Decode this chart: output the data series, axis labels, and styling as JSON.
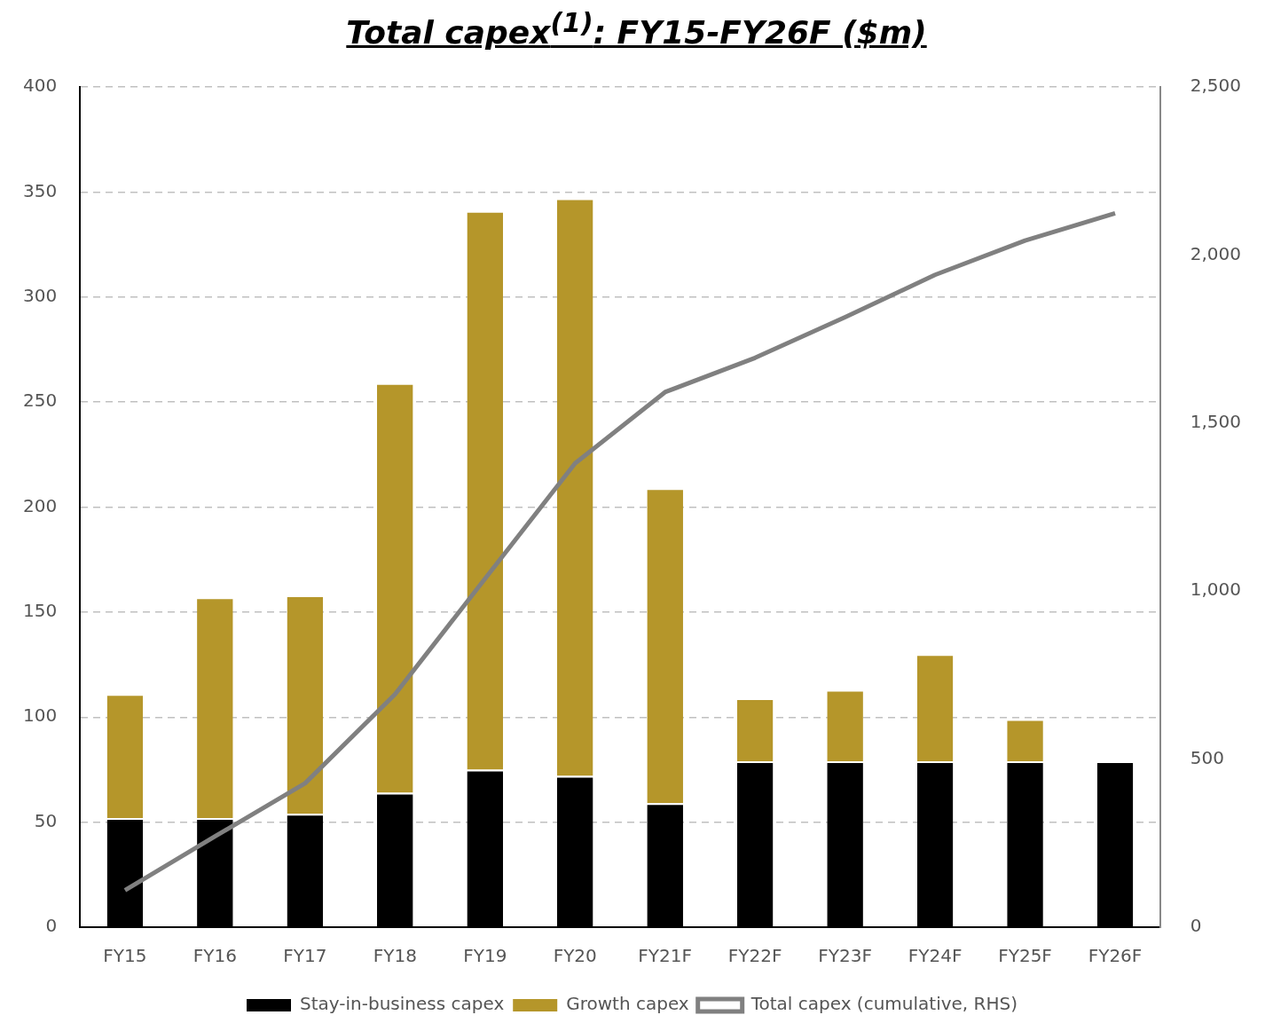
{
  "chart_data": {
    "type": "bar",
    "title": "Total capex$^{(1)}$: FY15-FY26F ($m)",
    "categories": [
      "FY15",
      "FY16",
      "FY17",
      "FY18",
      "FY19",
      "FY20",
      "FY21F",
      "FY22F",
      "FY23F",
      "FY24F",
      "FY25F",
      "FY26F"
    ],
    "stacked": true,
    "series": [
      {
        "name": "Stay-in-business capex",
        "color": "#000000",
        "values": [
          52,
          52,
          54,
          64,
          75,
          72,
          59,
          79,
          79,
          79,
          79,
          79
        ]
      },
      {
        "name": "Growth capex",
        "color": "#b5962a",
        "values": [
          59,
          105,
          104,
          195,
          266,
          275,
          150,
          30,
          34,
          51,
          20,
          0
        ]
      },
      {
        "name": "Total capex (cumulative, RHS)",
        "type": "line",
        "axis": "y2",
        "color": "#808080",
        "values": [
          110,
          270,
          428,
          693,
          1037,
          1380,
          1592,
          1694,
          1815,
          1941,
          2043,
          2124
        ]
      }
    ],
    "ylim": [
      0,
      400
    ],
    "yticks": [
      0,
      50,
      100,
      150,
      200,
      250,
      300,
      350,
      400
    ],
    "y2lim": [
      0,
      2500
    ],
    "y2ticks": [
      0,
      {
        "value": 500,
        "label": "500"
      },
      {
        "value": 1000,
        "label": "1,000"
      },
      {
        "value": 1500,
        "label": "1,500"
      },
      {
        "value": 2000,
        "label": "2,000"
      },
      {
        "value": 2500,
        "label": "2,500"
      }
    ],
    "grid": "y",
    "legend": "bottom",
    "marker": "none"
  }
}
